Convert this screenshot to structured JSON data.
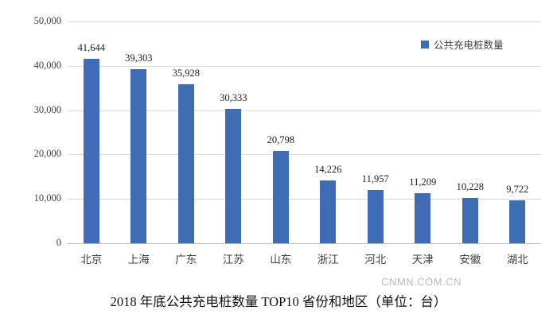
{
  "chart_data": {
    "type": "bar",
    "title": "2018 年底公共充电桩数量 TOP10 省份和地区（单位：台）",
    "categories": [
      "北京",
      "上海",
      "广东",
      "江苏",
      "山东",
      "浙江",
      "河北",
      "天津",
      "安徽",
      "湖北"
    ],
    "values": [
      41644,
      39303,
      35928,
      30333,
      20798,
      14226,
      11957,
      11209,
      10228,
      9722
    ],
    "value_labels": [
      "41,644",
      "39,303",
      "35,928",
      "30,333",
      "20,798",
      "14,226",
      "11,957",
      "11,209",
      "10,228",
      "9,722"
    ],
    "legend": [
      {
        "label": "公共充电桩数量",
        "color": "#3e6db5"
      }
    ],
    "legend_position": "top-right",
    "xlabel": "",
    "ylabel": "",
    "ylim": [
      0,
      50000
    ],
    "ytick_interval": 10000,
    "ytick_labels": [
      "0",
      "10,000",
      "20,000",
      "30,000",
      "40,000",
      "50,000"
    ],
    "grid": true,
    "bar_color": "#3e6db5",
    "gridline_color": "#d9d9d9"
  },
  "watermark": "CNMN.COM.CN"
}
